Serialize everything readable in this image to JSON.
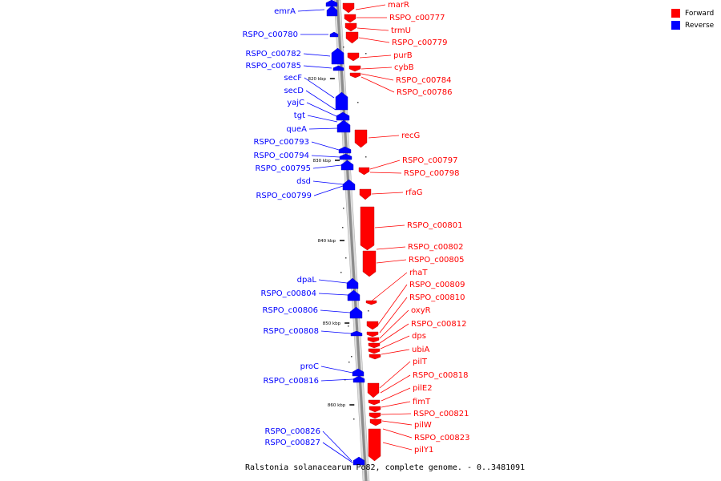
{
  "caption": "Ralstonia solanacearum Po82, complete genome. - 0..3481091",
  "legend": [
    {
      "label": "Forward",
      "color": "#ff0000"
    },
    {
      "label": "Reverse",
      "color": "#0000ff"
    }
  ],
  "colors": {
    "forward": "#ff0000",
    "reverse": "#0000ff",
    "backbone": "#8c8c8c"
  },
  "kbp_ticks": [
    "820 kbp",
    "830 kbp",
    "840 kbp",
    "850 kbp",
    "860 kbp"
  ],
  "reverse_genes": [
    "emrA",
    "RSPO_c00780",
    "RSPO_c00782",
    "RSPO_c00785",
    "secF",
    "secD",
    "yajC",
    "tgt",
    "queA",
    "RSPO_c00793",
    "RSPO_c00794",
    "RSPO_c00795",
    "dsd",
    "RSPO_c00799",
    "dpaL",
    "RSPO_c00804",
    "RSPO_c00806",
    "RSPO_c00808",
    "proC",
    "RSPO_c00816",
    "RSPO_c00826",
    "RSPO_c00827"
  ],
  "forward_genes": [
    "marR",
    "RSPO_c00777",
    "trmU",
    "RSPO_c00779",
    "purB",
    "cybB",
    "RSPO_c00784",
    "RSPO_c00786",
    "recG",
    "RSPO_c00797",
    "RSPO_c00798",
    "rfaG",
    "RSPO_c00801",
    "RSPO_c00802",
    "RSPO_c00805",
    "rhaT",
    "RSPO_c00809",
    "RSPO_c00810",
    "oxyR",
    "RSPO_c00812",
    "dps",
    "ubiA",
    "pilT",
    "RSPO_c00818",
    "pilE2",
    "fimT",
    "RSPO_c00821",
    "pilW",
    "RSPO_c00823",
    "pilY1"
  ]
}
